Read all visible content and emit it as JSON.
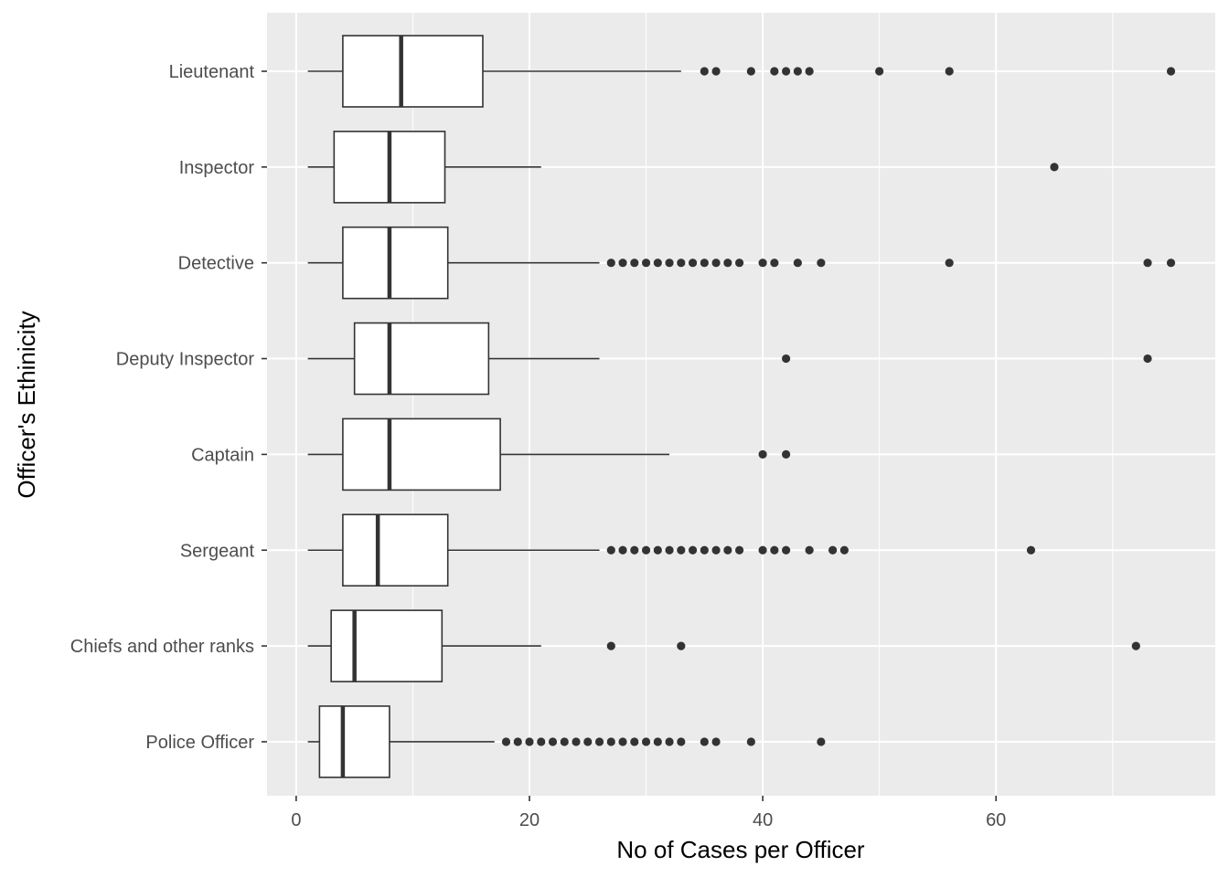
{
  "chart_data": {
    "type": "boxplot",
    "orientation": "horizontal",
    "xlabel": "No of Cases per Officer",
    "ylabel": "Officer's Ethinicity",
    "xlim": [
      -2.5,
      78.8
    ],
    "x_ticks": [
      0,
      20,
      40,
      60
    ],
    "x_minor_ticks": [
      10,
      30,
      50,
      70
    ],
    "grid": true,
    "colors": {
      "panel": "#ebebeb",
      "grid": "#ffffff",
      "box_fill": "#ffffff",
      "box_line": "#333333",
      "outlier": "#333333",
      "tick_label": "#4d4d4d"
    },
    "categories": [
      "Lieutenant",
      "Inspector",
      "Detective",
      "Deputy Inspector",
      "Captain",
      "Sergeant",
      "Chiefs and other ranks",
      "Police Officer"
    ],
    "boxes": [
      {
        "category": "Lieutenant",
        "whisker_low": 1,
        "q1": 4,
        "median": 9,
        "q3": 16,
        "whisker_high": 33,
        "outliers": [
          35,
          36,
          39,
          41,
          42,
          43,
          44,
          50,
          56,
          75
        ]
      },
      {
        "category": "Inspector",
        "whisker_low": 1,
        "q1": 3.25,
        "median": 8,
        "q3": 12.75,
        "whisker_high": 21,
        "outliers": [
          65
        ]
      },
      {
        "category": "Detective",
        "whisker_low": 1,
        "q1": 4,
        "median": 8,
        "q3": 13,
        "whisker_high": 26,
        "outliers": [
          27,
          28,
          29,
          30,
          31,
          32,
          33,
          34,
          35,
          36,
          37,
          38,
          40,
          41,
          43,
          45,
          56,
          73,
          75
        ]
      },
      {
        "category": "Deputy Inspector",
        "whisker_low": 1,
        "q1": 5,
        "median": 8,
        "q3": 16.5,
        "whisker_high": 26,
        "outliers": [
          42,
          73
        ]
      },
      {
        "category": "Captain",
        "whisker_low": 1,
        "q1": 4,
        "median": 8,
        "q3": 17.5,
        "whisker_high": 32,
        "outliers": [
          40,
          42
        ]
      },
      {
        "category": "Sergeant",
        "whisker_low": 1,
        "q1": 4,
        "median": 7,
        "q3": 13,
        "whisker_high": 26,
        "outliers": [
          27,
          28,
          29,
          30,
          31,
          32,
          33,
          34,
          35,
          36,
          37,
          38,
          40,
          41,
          42,
          44,
          46,
          47,
          63
        ]
      },
      {
        "category": "Chiefs and other ranks",
        "whisker_low": 1,
        "q1": 3,
        "median": 5,
        "q3": 12.5,
        "whisker_high": 21,
        "outliers": [
          27,
          33,
          72
        ]
      },
      {
        "category": "Police Officer",
        "whisker_low": 1,
        "q1": 2,
        "median": 4,
        "q3": 8,
        "whisker_high": 17,
        "outliers": [
          18,
          19,
          20,
          21,
          22,
          23,
          24,
          25,
          26,
          27,
          28,
          29,
          30,
          31,
          32,
          33,
          35,
          36,
          39,
          45
        ]
      }
    ]
  }
}
